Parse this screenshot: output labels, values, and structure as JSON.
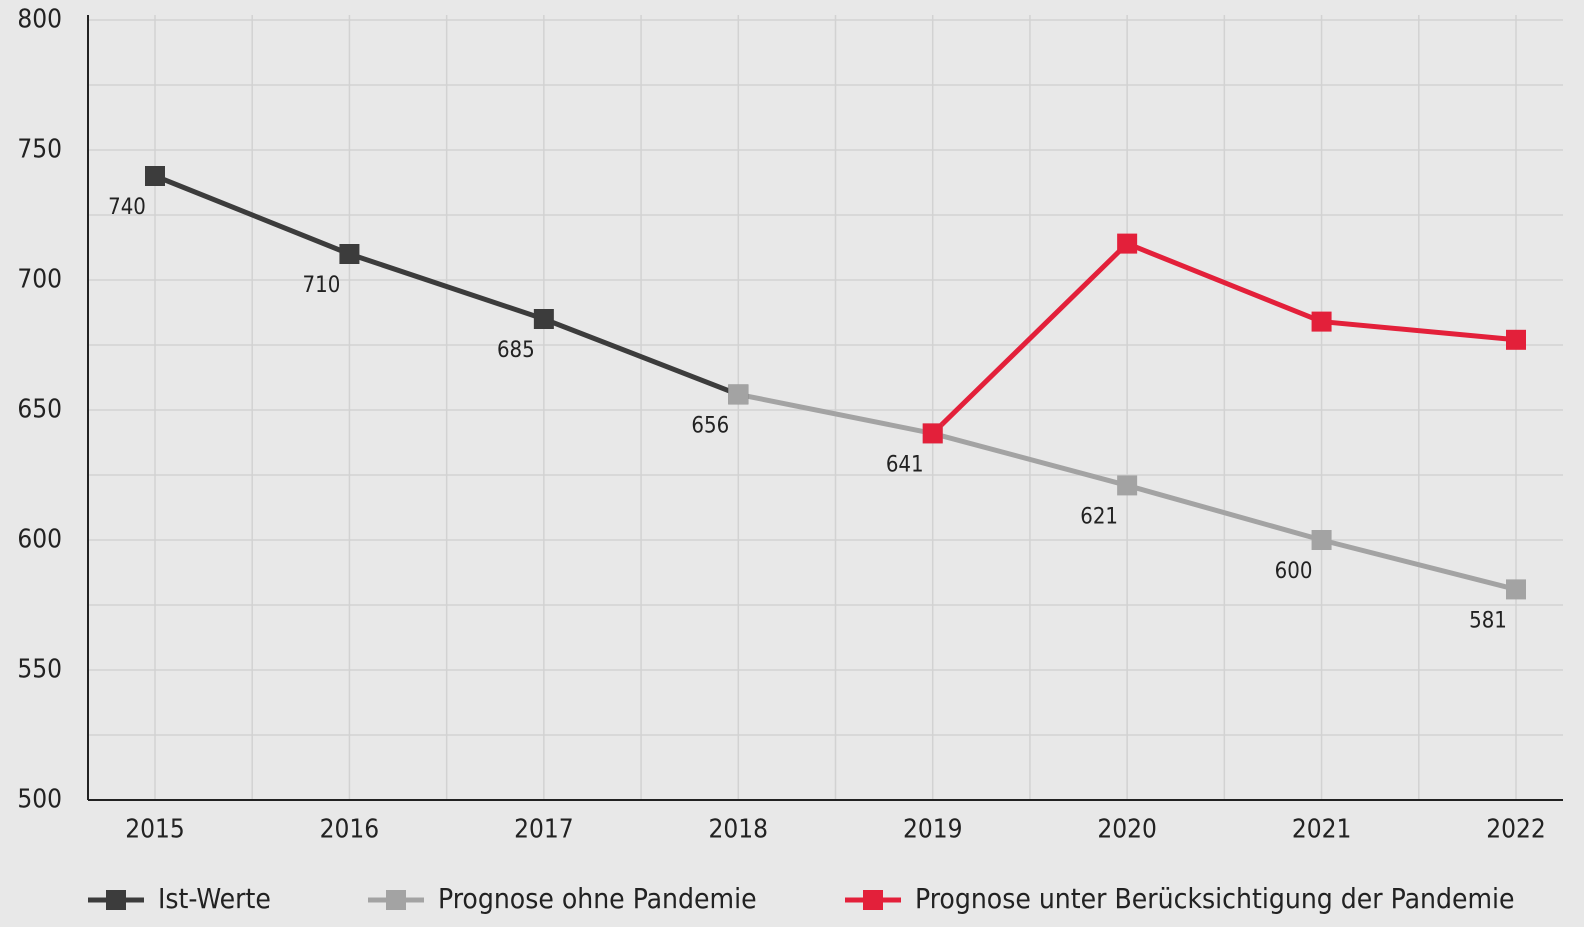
{
  "chart_data": {
    "type": "line",
    "categories": [
      "2015",
      "2016",
      "2017",
      "2018",
      "2019",
      "2020",
      "2021",
      "2022"
    ],
    "series": [
      {
        "name": "Ist-Werte",
        "color": "#3c3c3c",
        "values": [
          740,
          710,
          685,
          656,
          null,
          null,
          null,
          null
        ]
      },
      {
        "name": "Prognose ohne Pandemie",
        "color": "#a3a3a3",
        "values": [
          null,
          null,
          null,
          656,
          641,
          621,
          600,
          581
        ]
      },
      {
        "name": "Prognose unter Berücksichtigung der Pandemie",
        "color": "#e3203a",
        "values": [
          null,
          null,
          null,
          null,
          641,
          714,
          684,
          677
        ]
      }
    ],
    "ylim": [
      500,
      800
    ],
    "yticks": [
      500,
      550,
      600,
      650,
      700,
      750,
      800
    ],
    "grid": true,
    "legend": "bottom"
  }
}
